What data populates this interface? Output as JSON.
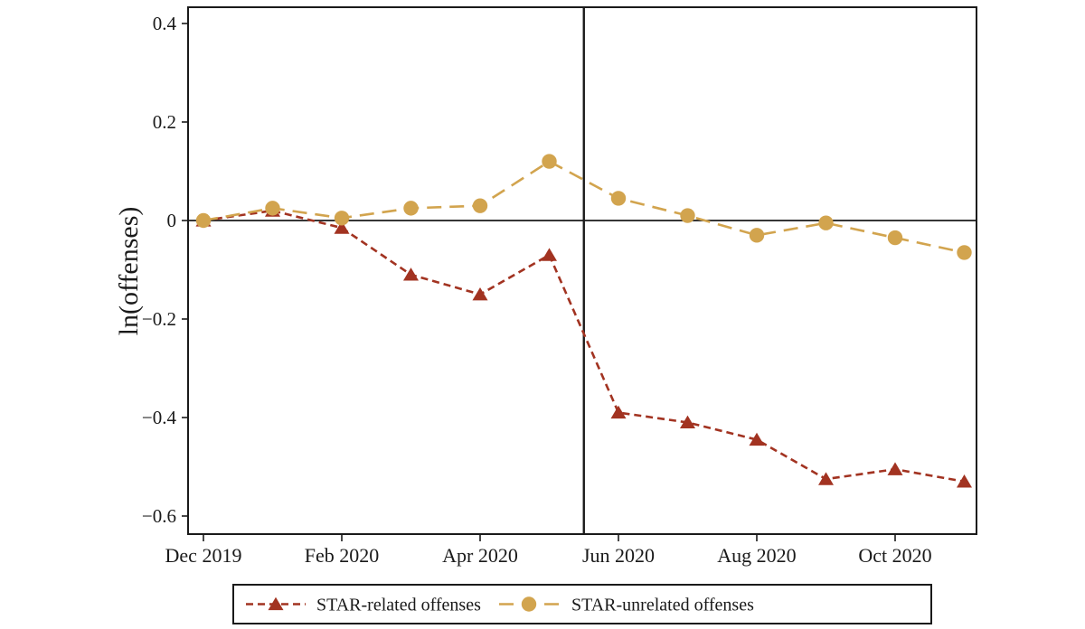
{
  "chart_data": {
    "type": "line",
    "title": "",
    "xlabel": "",
    "ylabel": "ln(offenses)",
    "x": [
      "Dec 2019",
      "Jan 2020",
      "Feb 2020",
      "Mar 2020",
      "Apr 2020",
      "May 2020",
      "Jun 2020",
      "Jul 2020",
      "Aug 2020",
      "Sep 2020",
      "Oct 2020",
      "Nov 2020"
    ],
    "x_ticks": [
      {
        "label": "Dec 2019",
        "month_index": 0
      },
      {
        "label": "Feb 2020",
        "month_index": 2
      },
      {
        "label": "Apr 2020",
        "month_index": 4
      },
      {
        "label": "Jun 2020",
        "month_index": 6
      },
      {
        "label": "Aug 2020",
        "month_index": 8
      },
      {
        "label": "Oct 2020",
        "month_index": 10
      }
    ],
    "y_ticks": [
      {
        "value": 0.4,
        "label": "0.4"
      },
      {
        "value": 0.2,
        "label": "0.2"
      },
      {
        "value": 0,
        "label": "0"
      },
      {
        "value": -0.2,
        "label": "−0.2"
      },
      {
        "value": -0.4,
        "label": "−0.4"
      },
      {
        "value": -0.6,
        "label": "−0.6"
      }
    ],
    "ylim": [
      -0.64,
      0.43
    ],
    "grid": false,
    "legend_position": "bottom",
    "reference_lines": {
      "horizontal_y": 0,
      "vertical_divider_between": [
        "May 2020",
        "Jun 2020"
      ]
    },
    "series": [
      {
        "name": "STAR-related offenses",
        "color": "#A23321",
        "marker": "triangle",
        "dash": "short",
        "values": [
          0.0,
          0.02,
          -0.015,
          -0.11,
          -0.15,
          -0.07,
          -0.39,
          -0.41,
          -0.445,
          -0.525,
          -0.505,
          -0.53
        ]
      },
      {
        "name": "STAR-unrelated offenses",
        "color": "#D2A44E",
        "marker": "circle",
        "dash": "long",
        "values": [
          0.0,
          0.025,
          0.005,
          0.025,
          0.03,
          0.12,
          0.045,
          0.01,
          -0.03,
          -0.005,
          -0.035,
          -0.065
        ]
      }
    ],
    "axis_color": "#1a1a1a"
  }
}
